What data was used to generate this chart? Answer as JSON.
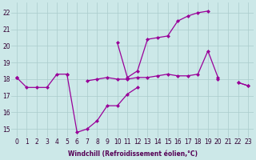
{
  "xlabel": "Windchill (Refroidissement éolien,°C)",
  "x_values": [
    0,
    1,
    2,
    3,
    4,
    5,
    6,
    7,
    8,
    9,
    10,
    11,
    12,
    13,
    14,
    15,
    16,
    17,
    18,
    19,
    20,
    21,
    22,
    23
  ],
  "line1_y": [
    18.1,
    17.5,
    17.5,
    17.5,
    18.3,
    18.3,
    14.8,
    15.0,
    15.5,
    16.4,
    16.4,
    17.1,
    17.5,
    null,
    null,
    null,
    null,
    null,
    null,
    null,
    18.0,
    null,
    17.8,
    17.6
  ],
  "line2_y": [
    18.1,
    17.5,
    17.5,
    17.5,
    18.3,
    18.3,
    null,
    null,
    null,
    null,
    null,
    null,
    null,
    null,
    null,
    null,
    null,
    null,
    null,
    null,
    18.0,
    null,
    17.8,
    17.6
  ],
  "line3_y": [
    18.1,
    null,
    null,
    null,
    null,
    null,
    null,
    null,
    null,
    null,
    null,
    null,
    null,
    null,
    null,
    null,
    null,
    null,
    null,
    null,
    null,
    null,
    null,
    null
  ],
  "line_flat_y": [
    18.1,
    null,
    null,
    null,
    null,
    18.3,
    null,
    17.9,
    18.0,
    18.1,
    18.0,
    18.0,
    18.1,
    18.1,
    18.2,
    18.3,
    18.2,
    18.2,
    18.3,
    19.7,
    18.1,
    null,
    17.8,
    17.6
  ],
  "line_high_y": [
    18.1,
    null,
    null,
    null,
    null,
    null,
    null,
    null,
    null,
    null,
    20.2,
    18.1,
    18.5,
    20.4,
    20.5,
    20.6,
    21.5,
    21.8,
    22.0,
    22.1,
    null,
    null,
    null,
    null
  ],
  "ylim_min": 14.5,
  "ylim_max": 22.6,
  "yticks": [
    15,
    16,
    17,
    18,
    19,
    20,
    21,
    22
  ],
  "xlim_min": -0.5,
  "xlim_max": 23.5,
  "bg_color": "#cce8e8",
  "line_color": "#990099",
  "grid_color": "#aacccc",
  "tick_color": "#330033",
  "label_color": "#550055",
  "xlabel_fontsize": 5.5,
  "tick_fontsize": 5.5,
  "marker": "D",
  "markersize": 2.5,
  "linewidth": 0.9
}
